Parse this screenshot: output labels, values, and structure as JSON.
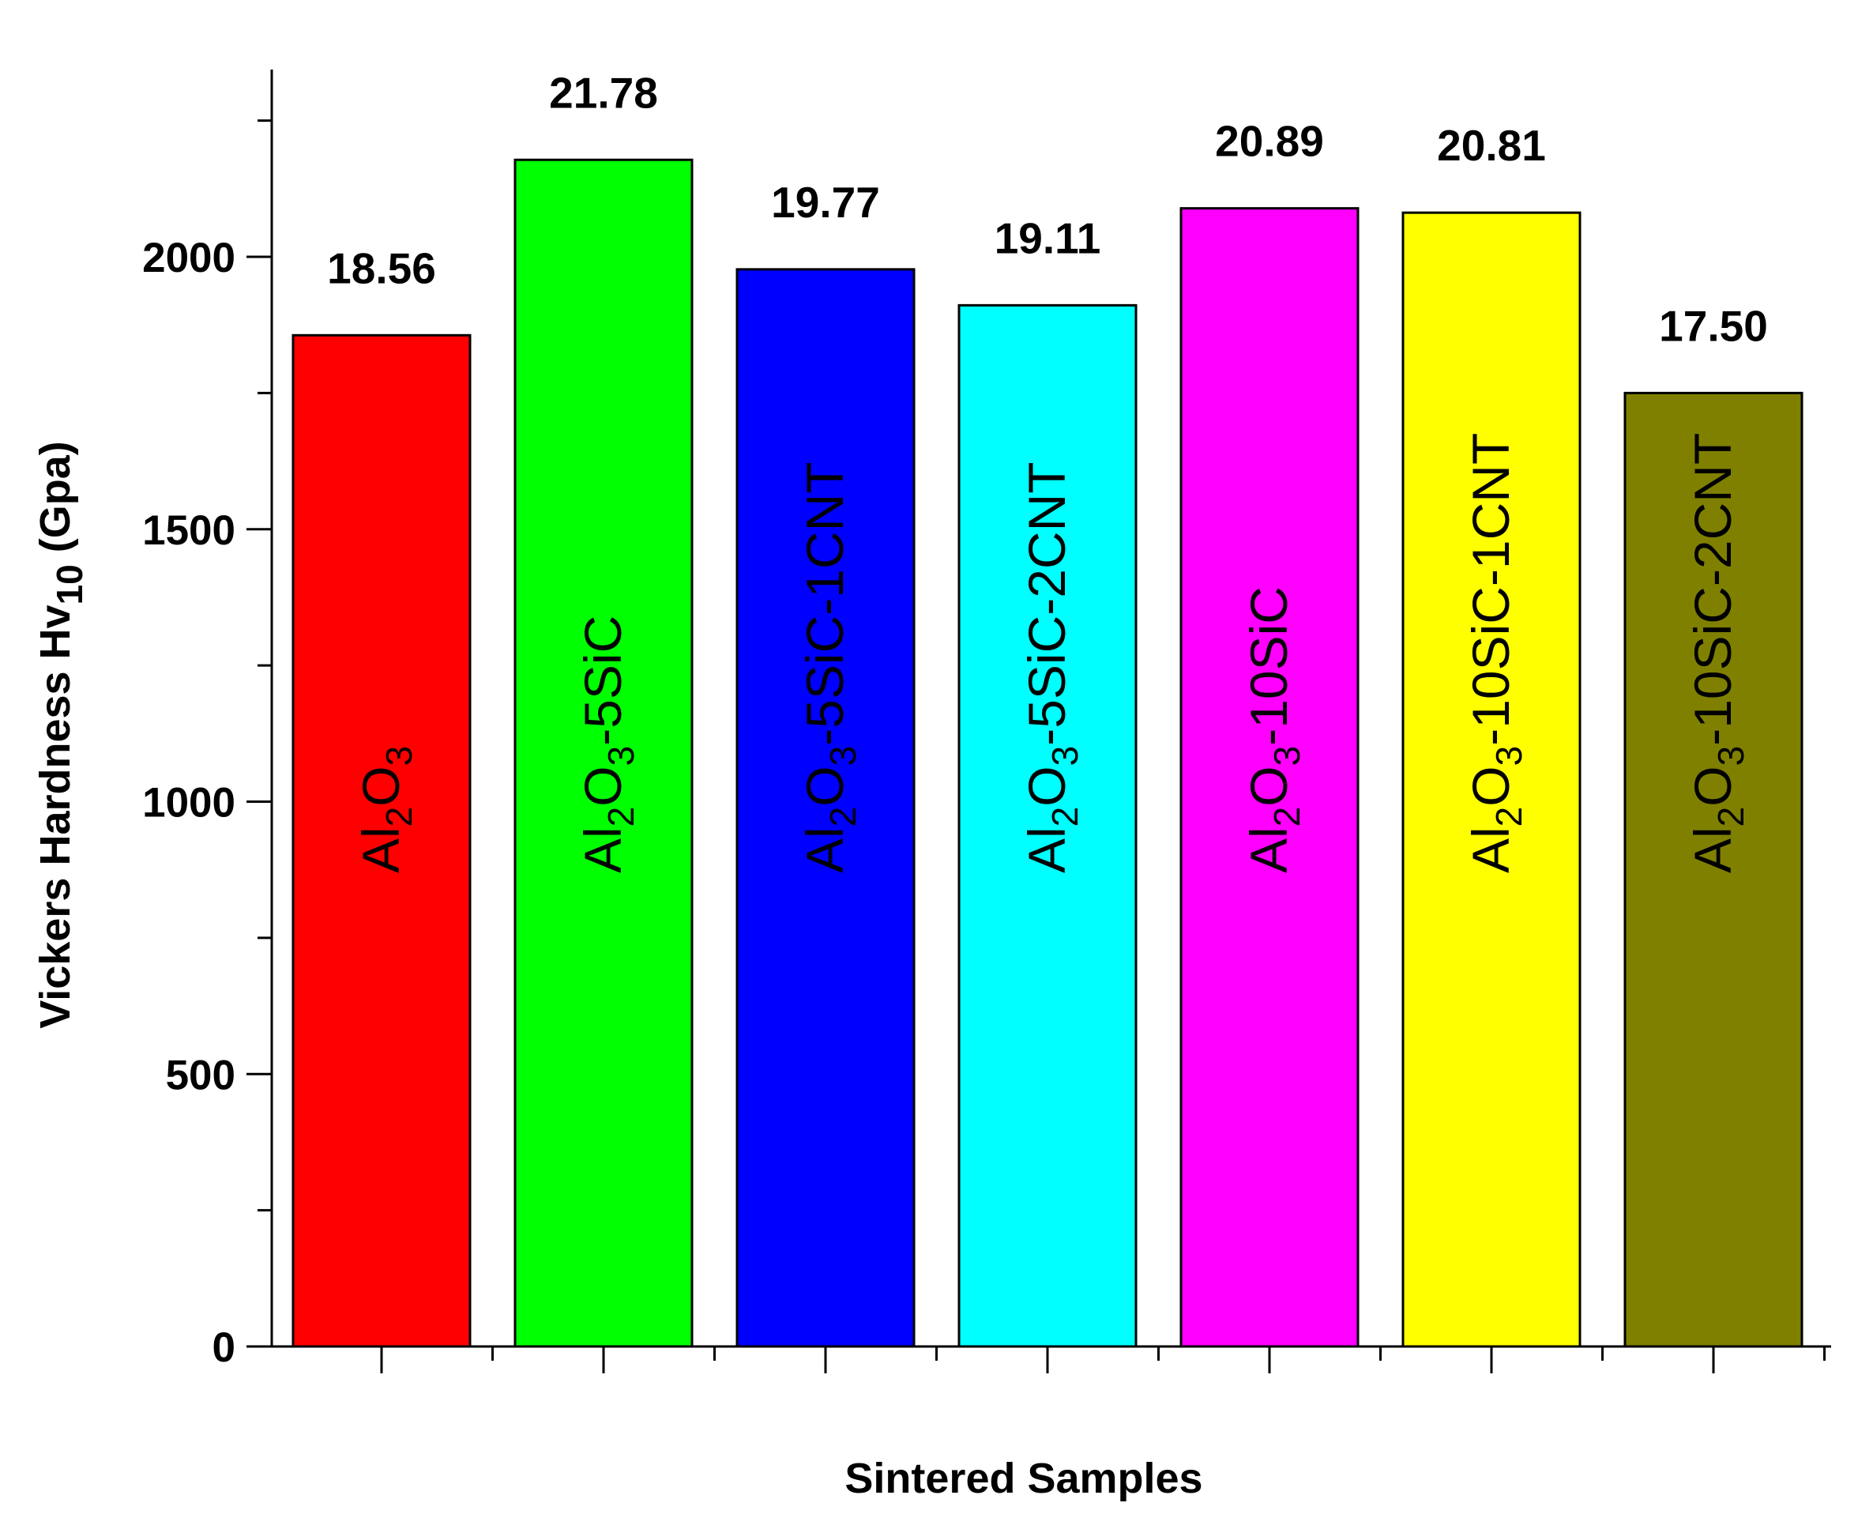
{
  "chart_data": {
    "type": "bar",
    "title": "",
    "xlabel": "Sintered Samples",
    "ylabel": {
      "main": "Vickers Hardness Hv",
      "subscript": "10",
      "unit": "(Gpa)"
    },
    "ylim": [
      0,
      2380
    ],
    "yticks": [
      0,
      500,
      1000,
      1500,
      2000
    ],
    "minor_tick_step": 250,
    "grid": false,
    "legend": "none",
    "categories": [
      "Al2O3",
      "Al2O3-5SiC",
      "Al2O3-5SiC-1CNT",
      "Al2O3-5SiC-2CNT",
      "Al2O3-10SiC",
      "Al2O3-10SiC-1CNT",
      "Al2O3-10SiC-2CNT"
    ],
    "category_label_parts": [
      [
        [
          "Al",
          false
        ],
        [
          "2",
          true
        ],
        [
          "O",
          false
        ],
        [
          "3",
          true
        ]
      ],
      [
        [
          "Al",
          false
        ],
        [
          "2",
          true
        ],
        [
          "O",
          false
        ],
        [
          "3",
          true
        ],
        [
          "-5SiC",
          false
        ]
      ],
      [
        [
          "Al",
          false
        ],
        [
          "2",
          true
        ],
        [
          "O",
          false
        ],
        [
          "3",
          true
        ],
        [
          "-5SiC-1CNT",
          false
        ]
      ],
      [
        [
          "Al",
          false
        ],
        [
          "2",
          true
        ],
        [
          "O",
          false
        ],
        [
          "3",
          true
        ],
        [
          "-5SiC-2CNT",
          false
        ]
      ],
      [
        [
          "Al",
          false
        ],
        [
          "2",
          true
        ],
        [
          "O",
          false
        ],
        [
          "3",
          true
        ],
        [
          "-10SiC",
          false
        ]
      ],
      [
        [
          "Al",
          false
        ],
        [
          "2",
          true
        ],
        [
          "O",
          false
        ],
        [
          "3",
          true
        ],
        [
          "-10SiC-1CNT",
          false
        ]
      ],
      [
        [
          "Al",
          false
        ],
        [
          "2",
          true
        ],
        [
          "O",
          false
        ],
        [
          "3",
          true
        ],
        [
          "-10SiC-2CNT",
          false
        ]
      ]
    ],
    "values": [
      1856,
      2178,
      1977,
      1911,
      2089,
      2081,
      1750
    ],
    "value_labels": [
      "18.56",
      "21.78",
      "19.77",
      "19.11",
      "20.89",
      "20.81",
      "17.50"
    ],
    "colors": [
      "#ff0000",
      "#00ff00",
      "#0000ff",
      "#00ffff",
      "#ff00ff",
      "#ffff00",
      "#808000"
    ]
  }
}
